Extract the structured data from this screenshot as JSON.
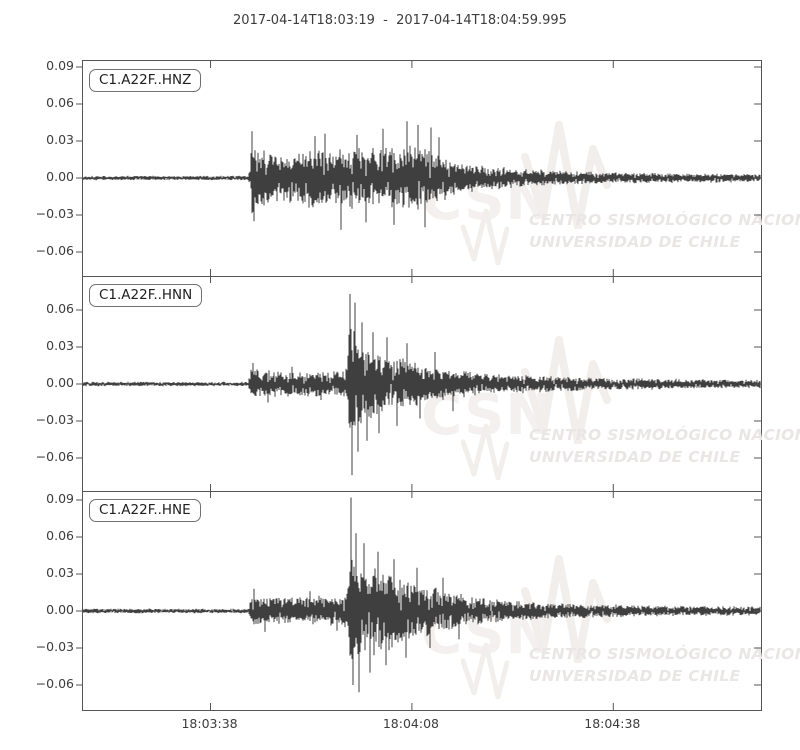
{
  "title": "2017-04-14T18:03:19  -  2017-04-14T18:04:59.995",
  "watermark": {
    "logo": "CSN",
    "line1": "CENTRO SISMOLÓGICO NACIONAL",
    "line2": "UNIVERSIDAD DE CHILE"
  },
  "colors": {
    "trace": "#3f3f3f",
    "axis": "#555555",
    "tick_label": "#3c3c3c",
    "channel_label_text": "#1e1e1e",
    "channel_label_border": "#707070",
    "watermark_logo": "#f3f0ef",
    "watermark_text": "#e9e6e5",
    "background": "#ffffff"
  },
  "chart_data": {
    "type": "line",
    "subtype": "seismogram-3-component",
    "title": "2017-04-14T18:03:19  -  2017-04-14T18:04:59.995",
    "x_start": "2017-04-14T18:03:19",
    "x_end": "2017-04-14T18:04:59.995",
    "duration_seconds": 101,
    "xlabel": "",
    "ylabel": "",
    "grid": false,
    "legend": "none (channel id boxes top-left of each panel)",
    "xticks": [
      {
        "seconds": 19,
        "label": "18:03:38"
      },
      {
        "seconds": 49,
        "label": "18:04:08"
      },
      {
        "seconds": 79,
        "label": "18:04:38"
      }
    ],
    "channels": [
      {
        "label": "C1.A22F..HNZ",
        "seed": 101,
        "ylim": [
          -0.0795,
          0.0949
        ],
        "yticks": [
          {
            "v": 0.09,
            "label": "0.09"
          },
          {
            "v": 0.06,
            "label": "0.06"
          },
          {
            "v": 0.03,
            "label": "0.03"
          },
          {
            "v": 0.0,
            "label": "0.00"
          },
          {
            "v": -0.03,
            "label": "−0.03"
          },
          {
            "v": -0.06,
            "label": "−0.06"
          }
        ],
        "envelope": [
          [
            0,
            0.002
          ],
          [
            24.6,
            0.002
          ],
          [
            24.9,
            0.008
          ],
          [
            25.1,
            0.032
          ],
          [
            26,
            0.03
          ],
          [
            27.5,
            0.024
          ],
          [
            29,
            0.02
          ],
          [
            31,
            0.021
          ],
          [
            33,
            0.025
          ],
          [
            35,
            0.026
          ],
          [
            37,
            0.024
          ],
          [
            39,
            0.027
          ],
          [
            41,
            0.025
          ],
          [
            43,
            0.026
          ],
          [
            45,
            0.028
          ],
          [
            47,
            0.026
          ],
          [
            49,
            0.029
          ],
          [
            51,
            0.027
          ],
          [
            53,
            0.02
          ],
          [
            55,
            0.016
          ],
          [
            57,
            0.013
          ],
          [
            59,
            0.011
          ],
          [
            62,
            0.0095
          ],
          [
            65,
            0.008
          ],
          [
            68,
            0.007
          ],
          [
            72,
            0.006
          ],
          [
            77,
            0.0052
          ],
          [
            83,
            0.0046
          ],
          [
            90,
            0.0042
          ],
          [
            101,
            0.0036
          ]
        ],
        "spikes": [
          [
            25.2,
            0.038
          ],
          [
            25.5,
            -0.035
          ],
          [
            34.6,
            0.034
          ],
          [
            36.1,
            0.036
          ],
          [
            38.4,
            -0.042
          ],
          [
            40.8,
            0.035
          ],
          [
            42.1,
            -0.036
          ],
          [
            44.7,
            0.04
          ],
          [
            46.3,
            -0.038
          ],
          [
            48.2,
            0.046
          ],
          [
            49.9,
            0.043
          ],
          [
            50.9,
            -0.04
          ],
          [
            51.8,
            0.041
          ],
          [
            53.0,
            0.033
          ]
        ]
      },
      {
        "label": "C1.A22F..HNN",
        "seed": 202,
        "ylim": [
          -0.0868,
          0.0876
        ],
        "yticks": [
          {
            "v": 0.06,
            "label": "0.06"
          },
          {
            "v": 0.03,
            "label": "0.03"
          },
          {
            "v": 0.0,
            "label": "0.00"
          },
          {
            "v": -0.03,
            "label": "−0.03"
          },
          {
            "v": -0.06,
            "label": "−0.06"
          }
        ],
        "envelope": [
          [
            0,
            0.002
          ],
          [
            24.6,
            0.002
          ],
          [
            25,
            0.012
          ],
          [
            26,
            0.014
          ],
          [
            28,
            0.011
          ],
          [
            30,
            0.0105
          ],
          [
            33,
            0.011
          ],
          [
            36,
            0.0105
          ],
          [
            38.5,
            0.011
          ],
          [
            39.4,
            0.014
          ],
          [
            39.7,
            0.058
          ],
          [
            40.3,
            0.05
          ],
          [
            41,
            0.042
          ],
          [
            42,
            0.036
          ],
          [
            43.5,
            0.03
          ],
          [
            45,
            0.027
          ],
          [
            46.5,
            0.024
          ],
          [
            48,
            0.022
          ],
          [
            50,
            0.019
          ],
          [
            52,
            0.016
          ],
          [
            54,
            0.014
          ],
          [
            56.5,
            0.012
          ],
          [
            59,
            0.01
          ],
          [
            62,
            0.009
          ],
          [
            65,
            0.008
          ],
          [
            69,
            0.007
          ],
          [
            74,
            0.006
          ],
          [
            80,
            0.005
          ],
          [
            87,
            0.0045
          ],
          [
            94,
            0.004
          ],
          [
            101,
            0.0037
          ]
        ],
        "spikes": [
          [
            25.3,
            0.017
          ],
          [
            27.6,
            -0.015
          ],
          [
            31.2,
            0.014
          ],
          [
            35.5,
            -0.013
          ],
          [
            39.8,
            0.073
          ],
          [
            40.05,
            -0.074
          ],
          [
            40.5,
            0.066
          ],
          [
            40.9,
            -0.055
          ],
          [
            41.6,
            0.05
          ],
          [
            42.3,
            -0.046
          ],
          [
            43.2,
            0.042
          ],
          [
            44.1,
            -0.04
          ],
          [
            45.3,
            0.038
          ],
          [
            46.8,
            -0.034
          ],
          [
            48.3,
            0.033
          ],
          [
            50.2,
            -0.028
          ],
          [
            52.4,
            0.026
          ],
          [
            55.1,
            -0.022
          ]
        ]
      },
      {
        "label": "C1.A22F..HNE",
        "seed": 303,
        "ylim": [
          -0.0803,
          0.0973
        ],
        "yticks": [
          {
            "v": 0.09,
            "label": "0.09"
          },
          {
            "v": 0.06,
            "label": "0.06"
          },
          {
            "v": 0.03,
            "label": "0.03"
          },
          {
            "v": 0.0,
            "label": "0.00"
          },
          {
            "v": -0.03,
            "label": "−0.03"
          },
          {
            "v": -0.06,
            "label": "−0.06"
          }
        ],
        "envelope": [
          [
            0,
            0.002
          ],
          [
            24.6,
            0.002
          ],
          [
            25,
            0.012
          ],
          [
            26,
            0.014
          ],
          [
            28,
            0.0115
          ],
          [
            31,
            0.012
          ],
          [
            34,
            0.0125
          ],
          [
            37,
            0.013
          ],
          [
            39.3,
            0.014
          ],
          [
            39.8,
            0.055
          ],
          [
            40.5,
            0.048
          ],
          [
            41.5,
            0.042
          ],
          [
            42.5,
            0.04
          ],
          [
            44,
            0.037
          ],
          [
            45.5,
            0.034
          ],
          [
            47,
            0.031
          ],
          [
            49,
            0.027
          ],
          [
            51,
            0.023
          ],
          [
            53,
            0.019
          ],
          [
            55,
            0.016
          ],
          [
            57.5,
            0.013
          ],
          [
            60,
            0.011
          ],
          [
            63,
            0.0095
          ],
          [
            66,
            0.008
          ],
          [
            70,
            0.007
          ],
          [
            75,
            0.006
          ],
          [
            81,
            0.0052
          ],
          [
            88,
            0.0046
          ],
          [
            95,
            0.0042
          ],
          [
            101,
            0.0038
          ]
        ],
        "spikes": [
          [
            25.4,
            0.018
          ],
          [
            27.1,
            -0.017
          ],
          [
            33.8,
            0.016
          ],
          [
            37.9,
            -0.016
          ],
          [
            39.9,
            0.092
          ],
          [
            40.15,
            -0.06
          ],
          [
            40.6,
            0.063
          ],
          [
            41.1,
            -0.066
          ],
          [
            41.9,
            0.055
          ],
          [
            42.8,
            -0.05
          ],
          [
            43.9,
            0.048
          ],
          [
            45.1,
            -0.044
          ],
          [
            46.4,
            0.042
          ],
          [
            48.1,
            -0.038
          ],
          [
            49.8,
            0.035
          ],
          [
            51.7,
            -0.03
          ],
          [
            53.6,
            0.027
          ],
          [
            56,
            -0.023
          ]
        ]
      }
    ]
  }
}
